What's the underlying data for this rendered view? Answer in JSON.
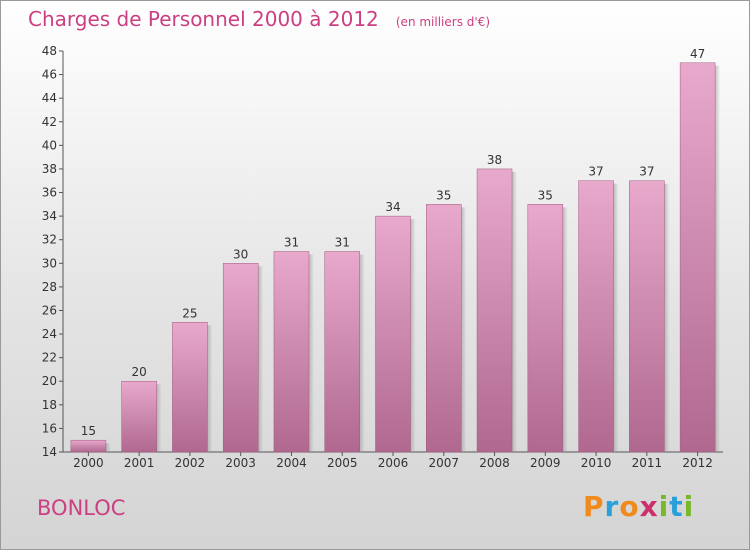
{
  "header": {
    "title": "Charges de Personnel 2000 à 2012",
    "subtitle": "(en milliers d'€)"
  },
  "commune": "BONLOC",
  "logo": {
    "text": "Proxiti",
    "letter_colors": [
      "#f08a1c",
      "#2a9fd8",
      "#f08a1c",
      "#cc2f6a",
      "#78b82a",
      "#2a9fd8",
      "#78b82a"
    ]
  },
  "colors": {
    "bar_top": "#e8a9cc",
    "bar_bottom": "#b0688f",
    "text_accent": "#cc3f82",
    "axis": "#555555"
  },
  "chart_data": {
    "type": "bar",
    "title": "Charges de Personnel 2000 à 2012",
    "subtitle": "(en milliers d'€)",
    "categories": [
      "2000",
      "2001",
      "2002",
      "2003",
      "2004",
      "2005",
      "2006",
      "2007",
      "2008",
      "2009",
      "2010",
      "2011",
      "2012"
    ],
    "values": [
      15,
      20,
      25,
      30,
      31,
      31,
      34,
      35,
      38,
      35,
      37,
      37,
      47
    ],
    "ylim": [
      14,
      48
    ],
    "yticks": [
      14,
      16,
      18,
      20,
      22,
      24,
      26,
      28,
      30,
      32,
      34,
      36,
      38,
      40,
      42,
      44,
      46,
      48
    ],
    "grid": false,
    "data_labels": true
  }
}
